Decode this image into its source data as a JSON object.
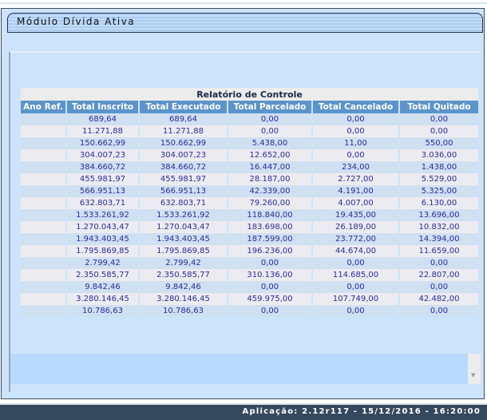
{
  "title": "Módulo Dívida Ativa",
  "report": {
    "caption": "Relatório de Controle",
    "columns": [
      "Ano Ref.",
      "Total Inscrito",
      "Total Executado",
      "Total Parcelado",
      "Total Cancelado",
      "Total Quitado"
    ],
    "rows": [
      [
        "",
        "689,64",
        "689,64",
        "0,00",
        "0,00",
        "0,00"
      ],
      [
        "",
        "11.271,88",
        "11.271,88",
        "0,00",
        "0,00",
        "0,00"
      ],
      [
        "",
        "150.662,99",
        "150.662,99",
        "5.438,00",
        "11,00",
        "550,00"
      ],
      [
        "",
        "304.007,23",
        "304.007,23",
        "12.652,00",
        "0,00",
        "3.036,00"
      ],
      [
        "",
        "384.660,72",
        "384.660,72",
        "16.447,00",
        "234,00",
        "1.438,00"
      ],
      [
        "",
        "455.981,97",
        "455.981,97",
        "28.187,00",
        "2.727,00",
        "5.529,00"
      ],
      [
        "",
        "566.951,13",
        "566.951,13",
        "42.339,00",
        "4.191,00",
        "5.325,00"
      ],
      [
        "",
        "632.803,71",
        "632.803,71",
        "79.260,00",
        "4.007,00",
        "6.130,00"
      ],
      [
        "",
        "1.533.261,92",
        "1.533.261,92",
        "118.840,00",
        "19.435,00",
        "13.696,00"
      ],
      [
        "",
        "1.270.043,47",
        "1.270.043,47",
        "183.698,00",
        "26.189,00",
        "10.832,00"
      ],
      [
        "",
        "1.943.403,45",
        "1.943.403,45",
        "187.599,00",
        "23.772,00",
        "14.394,00"
      ],
      [
        "",
        "1.795.869,85",
        "1.795.869,85",
        "196.236,00",
        "44.674,00",
        "11.659,00"
      ],
      [
        "",
        "2.799,42",
        "2.799,42",
        "0,00",
        "0,00",
        "0,00"
      ],
      [
        "",
        "2.350.585,77",
        "2.350.585,77",
        "310.136,00",
        "114.685,00",
        "22.807,00"
      ],
      [
        "",
        "9.842,46",
        "9.842,46",
        "0,00",
        "0,00",
        "0,00"
      ],
      [
        "",
        "3.280.146,45",
        "3.280.146,45",
        "459.975,00",
        "107.749,00",
        "42.482,00"
      ],
      [
        "",
        "10.786,63",
        "10.786,63",
        "0,00",
        "0,00",
        "0,00"
      ]
    ]
  },
  "footer": "Aplicação: 2.12r117 - 15/12/2016 - 16:20:00",
  "icons": {
    "scroll_down": "arrow-down-icon"
  },
  "colors": {
    "header": "#5b94cb",
    "footer": "#34495e",
    "panel": "#cce4fb",
    "text": "#2a2aa0"
  }
}
